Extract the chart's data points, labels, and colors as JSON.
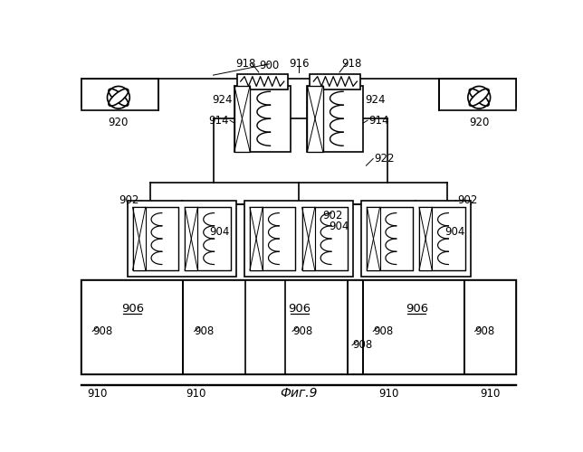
{
  "title": "Фиг.9",
  "bg_color": "#ffffff",
  "line_color": "#000000",
  "fig_width": 6.44,
  "fig_height": 5.0
}
